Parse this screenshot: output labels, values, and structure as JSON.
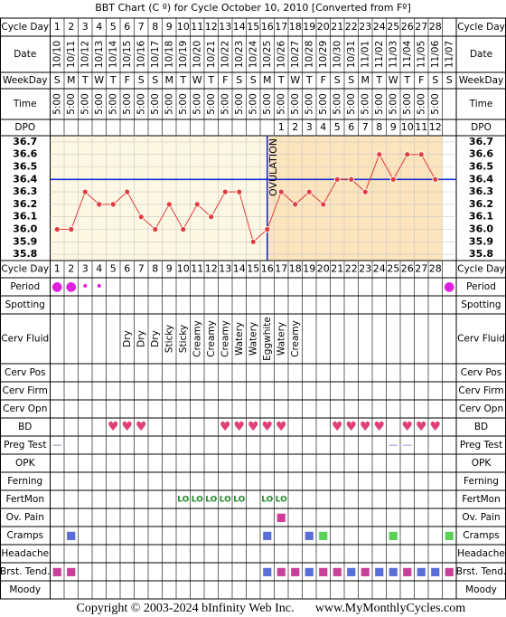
{
  "title": "BBT Chart (C º) for Cycle October 10, 2010  [Converted from Fº]",
  "footer": [
    "Copyright © 2003-2024 bInfinity Web Inc.",
    "www.MyMonthlyCycles.com"
  ],
  "header_rows": [
    {
      "label": "Cycle Day",
      "cells": [
        1,
        2,
        3,
        4,
        5,
        6,
        7,
        8,
        9,
        10,
        11,
        12,
        13,
        14,
        15,
        16,
        17,
        18,
        19,
        20,
        21,
        22,
        23,
        24,
        25,
        26,
        27,
        28,
        null
      ]
    },
    {
      "label": "Date",
      "cells": [
        "10/10",
        "10/11",
        "10/12",
        "10/13",
        "10/14",
        "10/15",
        "10/16",
        "10/17",
        "10/18",
        "10/19",
        "10/20",
        "10/21",
        "10/22",
        "10/23",
        "10/24",
        "10/25",
        "10/26",
        "10/27",
        "10/28",
        "10/29",
        "10/30",
        "10/31",
        "11/01",
        "11/02",
        "11/03",
        "11/04",
        "11/05",
        "11/06",
        "11/07"
      ]
    },
    {
      "label": "WeekDay",
      "cells": [
        "S",
        "M",
        "T",
        "W",
        "T",
        "F",
        "S",
        "S",
        "M",
        "T",
        "W",
        "T",
        "F",
        "S",
        "S",
        "M",
        "T",
        "W",
        "T",
        "F",
        "S",
        "S",
        "M",
        "T",
        "W",
        "T",
        "F",
        "S",
        "S"
      ]
    },
    {
      "label": "Time",
      "cells": [
        "5:00",
        "5:00",
        "5:00",
        "5:00",
        "5:00",
        "5:00",
        "5:00",
        "5:00",
        "5:00",
        "5:00",
        "5:00",
        "5:00",
        "5:00",
        "5:00",
        "5:00",
        "5:00",
        "5:00",
        "5:00",
        "5:00",
        "5:00",
        "5:00",
        "5:00",
        "5:00",
        "5:00",
        "5:00",
        "5:00",
        "5:00",
        "5:00",
        null
      ]
    },
    {
      "label": "DPO",
      "cells": [
        null,
        null,
        null,
        null,
        null,
        null,
        null,
        null,
        null,
        null,
        null,
        null,
        null,
        null,
        null,
        null,
        1,
        2,
        3,
        4,
        5,
        6,
        7,
        8,
        9,
        10,
        11,
        12,
        null
      ]
    }
  ],
  "chart_data": {
    "type": "line",
    "x": [
      1,
      2,
      3,
      4,
      5,
      6,
      7,
      8,
      9,
      10,
      11,
      12,
      13,
      14,
      15,
      16,
      17,
      18,
      19,
      20,
      21,
      22,
      23,
      24,
      25,
      26,
      27,
      28
    ],
    "values": [
      36.0,
      36.0,
      36.3,
      36.2,
      36.2,
      36.3,
      36.1,
      36.0,
      36.2,
      36.0,
      36.2,
      36.1,
      36.3,
      36.3,
      35.9,
      36.0,
      36.3,
      36.2,
      36.3,
      36.2,
      36.4,
      36.4,
      36.3,
      36.6,
      36.4,
      36.6,
      36.6,
      36.4
    ],
    "color": "#e03c3c",
    "ylim": [
      35.75,
      36.75
    ],
    "yticks": [
      36.7,
      36.6,
      36.5,
      36.4,
      36.3,
      36.2,
      36.1,
      {
        "value": 36,
        "label": "36.0"
      },
      35.9,
      35.8
    ],
    "grid": true,
    "coverline": 36.4,
    "ovulation_day": 16,
    "annotation": "OVULATION",
    "line_color": "#1a2fd0"
  },
  "symptom_rows": [
    {
      "label": "Period",
      "color": "#e020e0",
      "cells": [
        "●",
        "●",
        "•",
        "•",
        null,
        null,
        null,
        null,
        null,
        null,
        null,
        null,
        null,
        null,
        null,
        null,
        null,
        null,
        null,
        null,
        null,
        null,
        null,
        null,
        null,
        null,
        null,
        null,
        "●"
      ]
    },
    {
      "label": "Spotting"
    },
    {
      "label": "Cerv Fluid",
      "color": "#000000",
      "cells": [
        null,
        null,
        null,
        null,
        null,
        "Dry",
        "Dry",
        "Dry",
        "Sticky",
        "Sticky",
        "Creamy",
        "Creamy",
        "Creamy",
        "Watery",
        "Watery",
        "Eggwhite",
        "Watery",
        "Creamy",
        null,
        null,
        null,
        null,
        null,
        null,
        null,
        null,
        null,
        null,
        null
      ]
    },
    {
      "label": "Cerv Pos"
    },
    {
      "label": "Cerv Firm"
    },
    {
      "label": "Cerv Opn"
    },
    {
      "label": "BD",
      "color": "#e0407a",
      "cells": [
        null,
        null,
        null,
        null,
        "♥",
        "♥",
        "♥",
        null,
        null,
        null,
        null,
        null,
        "♥",
        "♥",
        "♥",
        "♥",
        "♥",
        null,
        null,
        null,
        "♥",
        "♥",
        "♥",
        "♥",
        null,
        "♥",
        "♥",
        "♥",
        null
      ]
    },
    {
      "label": "Preg Test",
      "cells": [
        "—",
        null,
        null,
        null,
        null,
        null,
        null,
        null,
        null,
        null,
        null,
        null,
        null,
        null,
        null,
        null,
        null,
        null,
        null,
        null,
        null,
        null,
        null,
        null,
        "—",
        "—",
        null,
        null,
        null
      ],
      "colors": [
        "#8060a0",
        null,
        null,
        null,
        null,
        null,
        null,
        null,
        null,
        null,
        null,
        null,
        null,
        null,
        null,
        null,
        null,
        null,
        null,
        null,
        null,
        null,
        null,
        null,
        "#7a7ad0",
        "#7a7ad0",
        null,
        null,
        null
      ]
    },
    {
      "label": "OPK"
    },
    {
      "label": "Ferning"
    },
    {
      "label": "FertMon",
      "color": "#1f8a2a",
      "cells": [
        null,
        null,
        null,
        null,
        null,
        null,
        null,
        null,
        null,
        "LO",
        "LO",
        "LO",
        "LO",
        "LO",
        null,
        "LO",
        "LO",
        null,
        null,
        null,
        null,
        null,
        null,
        null,
        null,
        null,
        null,
        null,
        null
      ]
    },
    {
      "label": "Ov. Pain",
      "color": "#d03a9a",
      "cells": [
        null,
        null,
        null,
        null,
        null,
        null,
        null,
        null,
        null,
        null,
        null,
        null,
        null,
        null,
        null,
        null,
        "■",
        null,
        null,
        null,
        null,
        null,
        null,
        null,
        null,
        null,
        null,
        null,
        null
      ]
    },
    {
      "label": "Cramps",
      "cells": [
        null,
        "■",
        null,
        null,
        null,
        null,
        null,
        null,
        null,
        null,
        null,
        null,
        null,
        null,
        null,
        "■",
        null,
        null,
        "■",
        "■",
        null,
        null,
        null,
        null,
        "■",
        null,
        null,
        null,
        "■"
      ],
      "colors": [
        null,
        "#5a6ed8",
        null,
        null,
        null,
        null,
        null,
        null,
        null,
        null,
        null,
        null,
        null,
        null,
        null,
        "#5a6ed8",
        null,
        null,
        "#5a6ed8",
        "#5ad25a",
        null,
        null,
        null,
        null,
        "#5ad25a",
        null,
        null,
        null,
        "#5ad25a"
      ]
    },
    {
      "label": "Headache"
    },
    {
      "label": "Brst. Tend.",
      "cells": [
        "■",
        "■",
        null,
        null,
        null,
        null,
        null,
        null,
        null,
        null,
        null,
        null,
        null,
        null,
        null,
        "■",
        "■",
        "■",
        "■",
        "■",
        "■",
        "■",
        "■",
        "■",
        "■",
        "■",
        "■",
        "■",
        "■"
      ],
      "colors": [
        "#c8409a",
        "#c8409a",
        null,
        null,
        null,
        null,
        null,
        null,
        null,
        null,
        null,
        null,
        null,
        null,
        null,
        "#5a6ed8",
        "#c8409a",
        "#c8409a",
        "#5a6ed8",
        "#c8409a",
        "#c8409a",
        "#5a6ed8",
        "#c8409a",
        "#5a6ed8",
        "#5a6ed8",
        "#c8409a",
        "#5a6ed8",
        "#5a6ed8",
        "#c8409a"
      ]
    },
    {
      "label": "Moody"
    }
  ]
}
